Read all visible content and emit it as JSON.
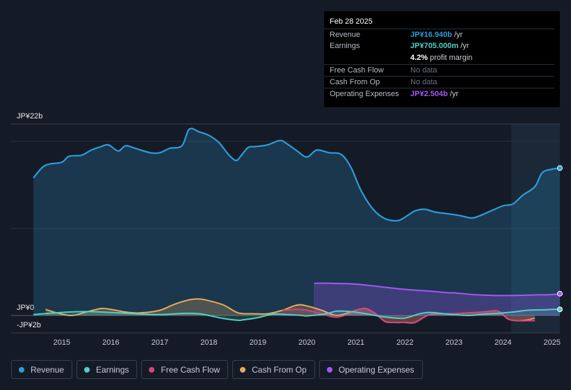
{
  "tooltip": {
    "date": "Feb 28 2025",
    "rows": [
      {
        "label": "Revenue",
        "value": "JP¥16.940b",
        "unit": " /yr",
        "color": "#2d9cdb"
      },
      {
        "label": "Earnings",
        "value": "JP¥705.000m",
        "unit": " /yr",
        "color": "#4fd1c5"
      },
      {
        "label": "",
        "value": "4.2%",
        "unit": " profit margin",
        "color": "#ffffff"
      },
      {
        "label": "Free Cash Flow",
        "value": "No data",
        "unit": "",
        "color": "#6b7280"
      },
      {
        "label": "Cash From Op",
        "value": "No data",
        "unit": "",
        "color": "#6b7280"
      },
      {
        "label": "Operating Expenses",
        "value": "JP¥2.504b",
        "unit": " /yr",
        "color": "#a855f7"
      }
    ]
  },
  "legend": [
    {
      "label": "Revenue",
      "color": "#2d9cdb"
    },
    {
      "label": "Earnings",
      "color": "#4fd1c5"
    },
    {
      "label": "Free Cash Flow",
      "color": "#d6457a"
    },
    {
      "label": "Cash From Op",
      "color": "#e8a95b"
    },
    {
      "label": "Operating Expenses",
      "color": "#a855f7"
    }
  ],
  "chart_data": {
    "type": "line",
    "title": "",
    "xlabel": "",
    "ylabel": "",
    "ylim": [
      -2,
      22
    ],
    "x_range": [
      2014.42,
      2025.16
    ],
    "y_tick_labels": [
      {
        "value": 22,
        "label": "JP¥22b"
      },
      {
        "value": 0,
        "label": "JP¥0"
      },
      {
        "value": -2,
        "label": "-JP¥2b"
      }
    ],
    "x_tick_labels": [
      "2015",
      "2016",
      "2017",
      "2018",
      "2019",
      "2020",
      "2021",
      "2022",
      "2023",
      "2024",
      "2025"
    ],
    "x_tick_values": [
      2015,
      2016,
      2017,
      2018,
      2019,
      2020,
      2021,
      2022,
      2023,
      2024,
      2025
    ],
    "highlight_from": 2024.17,
    "series": [
      {
        "name": "Revenue",
        "color": "#2d9cdb",
        "fill": true,
        "x": [
          2014.42,
          2014.6,
          2014.75,
          2015.0,
          2015.15,
          2015.4,
          2015.6,
          2015.8,
          2015.95,
          2016.15,
          2016.3,
          2016.5,
          2016.8,
          2017.0,
          2017.2,
          2017.45,
          2017.6,
          2017.8,
          2018.0,
          2018.2,
          2018.4,
          2018.55,
          2018.65,
          2018.8,
          2018.95,
          2019.2,
          2019.45,
          2019.6,
          2019.8,
          2020.0,
          2020.2,
          2020.45,
          2020.7,
          2020.9,
          2021.1,
          2021.35,
          2021.6,
          2021.85,
          2022.0,
          2022.2,
          2022.4,
          2022.6,
          2022.85,
          2023.1,
          2023.35,
          2023.5,
          2023.75,
          2024.0,
          2024.2,
          2024.4,
          2024.65,
          2024.8,
          2025.0,
          2025.16
        ],
        "values": [
          15.8,
          17.0,
          17.4,
          17.6,
          18.3,
          18.4,
          19.0,
          19.4,
          19.6,
          18.9,
          19.5,
          19.2,
          18.7,
          18.7,
          19.2,
          19.5,
          21.4,
          21.1,
          20.7,
          19.9,
          18.5,
          17.8,
          18.3,
          19.3,
          19.4,
          19.6,
          20.1,
          19.7,
          18.9,
          18.2,
          19.0,
          18.7,
          18.5,
          17.0,
          14.4,
          12.2,
          11.1,
          10.9,
          11.3,
          12.0,
          12.2,
          11.9,
          11.7,
          11.5,
          11.2,
          11.4,
          12.0,
          12.6,
          12.8,
          13.8,
          14.8,
          16.4,
          16.8,
          16.94
        ]
      },
      {
        "name": "Earnings",
        "color": "#4fd1c5",
        "fill": true,
        "x": [
          2014.42,
          2015.0,
          2015.5,
          2016.0,
          2016.5,
          2017.0,
          2017.5,
          2017.8,
          2018.0,
          2018.3,
          2018.6,
          2018.7,
          2019.0,
          2019.3,
          2019.6,
          2019.9,
          2020.0,
          2020.4,
          2020.6,
          2020.9,
          2021.2,
          2021.5,
          2021.8,
          2022.0,
          2022.3,
          2022.5,
          2022.8,
          2023.0,
          2023.3,
          2023.6,
          2023.9,
          2024.2,
          2024.5,
          2024.8,
          2025.0,
          2025.16
        ],
        "values": [
          0.1,
          0.35,
          0.45,
          0.35,
          0.2,
          0.1,
          0.25,
          0.2,
          0.0,
          -0.35,
          -0.55,
          -0.5,
          -0.25,
          0.15,
          0.1,
          0.0,
          -0.05,
          0.2,
          0.5,
          0.45,
          0.2,
          -0.1,
          -0.3,
          -0.3,
          0.2,
          0.35,
          0.2,
          0.1,
          0.0,
          0.15,
          0.25,
          0.4,
          0.6,
          0.65,
          0.7,
          0.705
        ]
      },
      {
        "name": "Free Cash Flow",
        "color": "#d6457a",
        "fill": true,
        "x": [
          2019.5,
          2019.8,
          2020.0,
          2020.3,
          2020.6,
          2020.9,
          2021.0,
          2021.2,
          2021.4,
          2021.6,
          2021.8,
          2022.0,
          2022.2,
          2022.5,
          2022.8,
          2023.0,
          2023.3,
          2023.6,
          2023.9,
          2024.1,
          2024.3,
          2024.5,
          2024.65
        ],
        "values": [
          0.6,
          0.7,
          0.6,
          0.2,
          -0.2,
          0.3,
          0.6,
          0.8,
          0.2,
          -0.7,
          -0.8,
          -0.8,
          -0.8,
          0.1,
          0.2,
          0.2,
          0.3,
          0.4,
          0.5,
          -0.4,
          -0.6,
          -0.6,
          -0.6
        ]
      },
      {
        "name": "Cash From Op",
        "color": "#e8a95b",
        "fill": true,
        "x": [
          2014.67,
          2014.9,
          2015.2,
          2015.5,
          2015.8,
          2016.0,
          2016.3,
          2016.6,
          2017.0,
          2017.3,
          2017.6,
          2017.8,
          2018.0,
          2018.3,
          2018.6,
          2018.9,
          2019.2,
          2019.5,
          2019.8,
          2020.0,
          2020.3,
          2020.6,
          2020.9,
          2021.0,
          2021.2,
          2021.4,
          2021.6,
          2021.8,
          2022.0,
          2022.2,
          2022.5,
          2022.8,
          2023.0,
          2023.3,
          2023.6,
          2023.9,
          2024.1,
          2024.3,
          2024.5,
          2024.65
        ],
        "values": [
          0.7,
          0.3,
          0.0,
          0.4,
          0.8,
          0.7,
          0.4,
          0.3,
          0.6,
          1.3,
          1.8,
          1.9,
          1.7,
          1.2,
          0.3,
          0.2,
          0.2,
          0.6,
          1.2,
          1.1,
          0.6,
          0.0,
          0.4,
          0.6,
          0.8,
          0.2,
          -0.7,
          -0.8,
          -0.8,
          -0.8,
          0.1,
          0.2,
          0.2,
          0.3,
          0.4,
          0.5,
          -0.4,
          -0.6,
          -0.5,
          -0.3
        ]
      },
      {
        "name": "Operating Expenses",
        "color": "#a855f7",
        "fill": true,
        "x": [
          2020.15,
          2020.5,
          2021.0,
          2021.5,
          2022.0,
          2022.5,
          2022.9,
          2023.0,
          2023.4,
          2023.8,
          2024.2,
          2024.6,
          2025.0,
          2025.16
        ],
        "values": [
          3.7,
          3.7,
          3.6,
          3.3,
          3.0,
          2.8,
          2.6,
          2.6,
          2.4,
          2.3,
          2.3,
          2.35,
          2.4,
          2.504
        ]
      }
    ]
  }
}
